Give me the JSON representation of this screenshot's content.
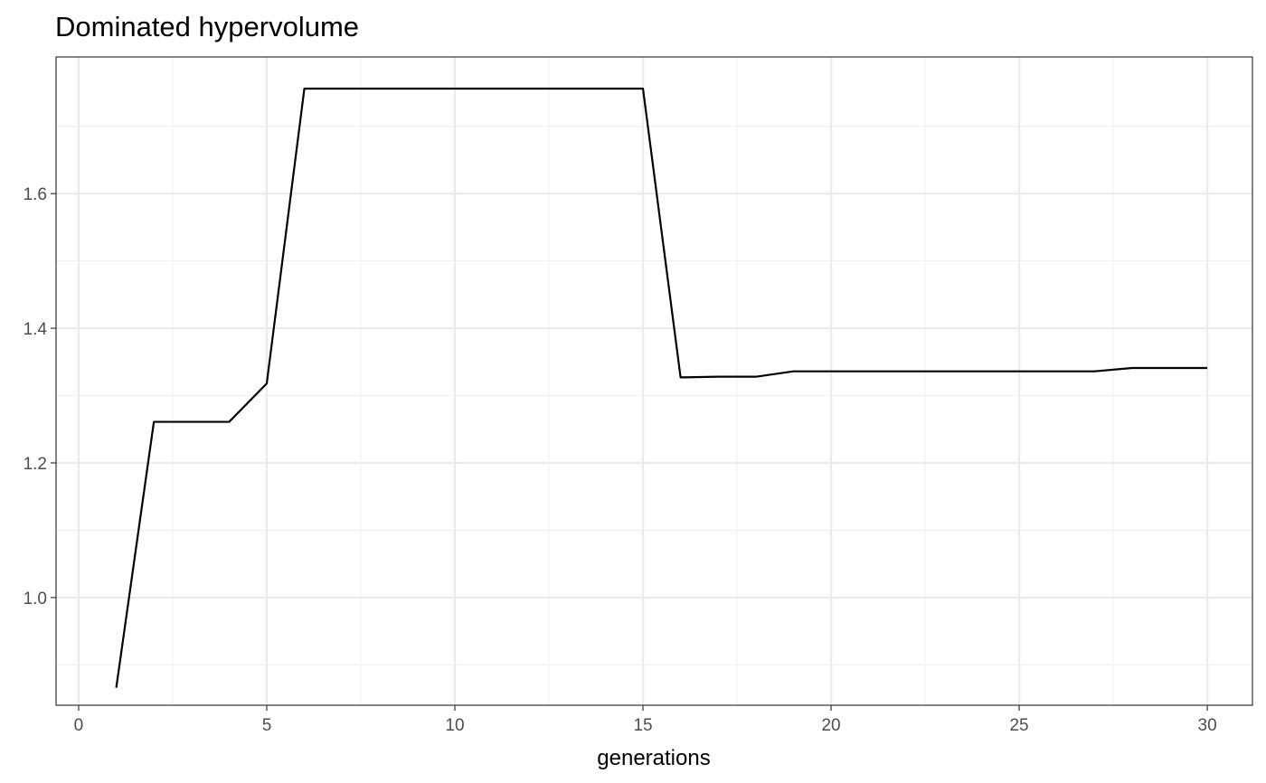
{
  "chart_data": {
    "type": "line",
    "title": "Dominated hypervolume",
    "xlabel": "generations",
    "ylabel": "",
    "xlim": [
      -0.6,
      31.2
    ],
    "ylim": [
      0.84,
      1.803
    ],
    "x_ticks": [
      0,
      5,
      10,
      15,
      20,
      25,
      30
    ],
    "x_tick_labels": [
      "0",
      "5",
      "10",
      "15",
      "20",
      "25",
      "30"
    ],
    "x_minor_ticks": [
      2.5,
      7.5,
      12.5,
      17.5,
      22.5,
      27.5
    ],
    "y_ticks": [
      1.0,
      1.2,
      1.4,
      1.6
    ],
    "y_tick_labels": [
      "1.0",
      "1.2",
      "1.4",
      "1.6"
    ],
    "y_minor_ticks": [
      0.9,
      1.1,
      1.3,
      1.5,
      1.7
    ],
    "grid": true,
    "series": [
      {
        "color": "#000000",
        "x": [
          1,
          2,
          3,
          4,
          5,
          6,
          7,
          8,
          9,
          10,
          11,
          12,
          13,
          14,
          15,
          16,
          17,
          18,
          19,
          20,
          21,
          22,
          23,
          24,
          25,
          26,
          27,
          28,
          29,
          30
        ],
        "y": [
          0.866,
          1.261,
          1.261,
          1.261,
          1.318,
          1.756,
          1.756,
          1.756,
          1.756,
          1.756,
          1.756,
          1.756,
          1.756,
          1.756,
          1.756,
          1.327,
          1.328,
          1.328,
          1.336,
          1.336,
          1.336,
          1.336,
          1.336,
          1.336,
          1.336,
          1.336,
          1.336,
          1.341,
          1.341,
          1.341
        ]
      }
    ]
  }
}
